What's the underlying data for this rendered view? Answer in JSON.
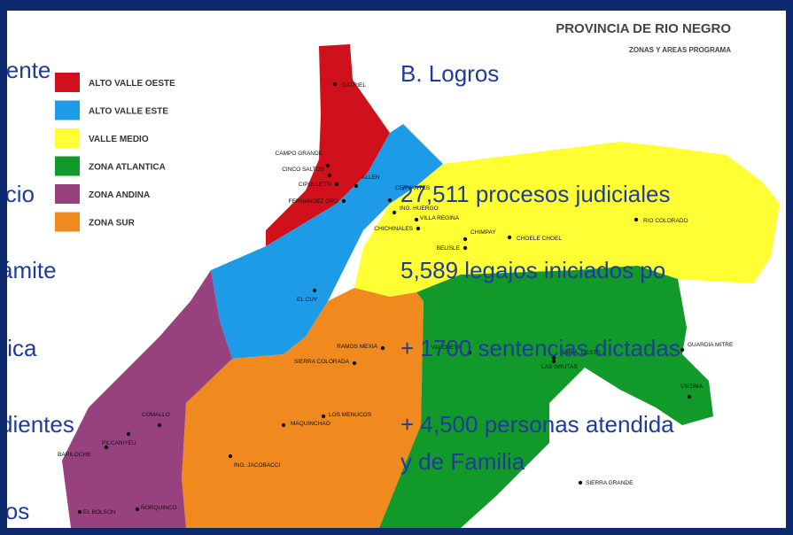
{
  "slide": {
    "left_fragments": [
      "iente",
      "icio",
      "ámite",
      "tica",
      "dientes",
      "ios"
    ],
    "heading": "B.  Logros",
    "items": [
      "27,511 procesos judiciales",
      "5,589  legajos iniciados po",
      "+ 1700 sentencias dictadas",
      "+ 4,500 personas atendida",
      "y de Familia"
    ]
  },
  "map": {
    "title": "PROVINCIA DE RIO NEGRO",
    "subtitle": "ZONAS Y AREAS PROGRAMA",
    "legend": [
      {
        "label": "ALTO VALLE OESTE",
        "color": "#d0111b"
      },
      {
        "label": "ALTO VALLE ESTE",
        "color": "#1e9be6"
      },
      {
        "label": "VALLE MEDIO",
        "color": "#ffff33"
      },
      {
        "label": "ZONA ATLANTICA",
        "color": "#119a2a"
      },
      {
        "label": "ZONA ANDINA",
        "color": "#98417f"
      },
      {
        "label": "ZONA SUR",
        "color": "#f08a1e"
      }
    ],
    "cities": [
      "CATRIEL",
      "CAMPO GRANDE",
      "CINCO SALTOS",
      "CIPOLLETTI",
      "FERNANDEZ ORO",
      "ALLEN",
      "CERVANTES",
      "ING. HUERGO",
      "VILLA REGINA",
      "CHICHINALES",
      "CHIMPAY",
      "BELISLE",
      "CHOELE CHOEL",
      "RIO COLORADO",
      "EL CUY",
      "RAMOS MEXIA",
      "SIERRA COLORADA",
      "VALCHETA",
      "SAN A. OESTE",
      "LAS GRUTAS",
      "GUARDIA MITRE",
      "VIEDMA",
      "LOS MENUCOS",
      "MAQUINCHAO",
      "ING. JACOBACCI",
      "COMALLO",
      "PILCANIYEU",
      "BARILOCHE",
      "EL BOLSON",
      "ÑORQUINCO",
      "SIERRA GRANDE"
    ]
  }
}
